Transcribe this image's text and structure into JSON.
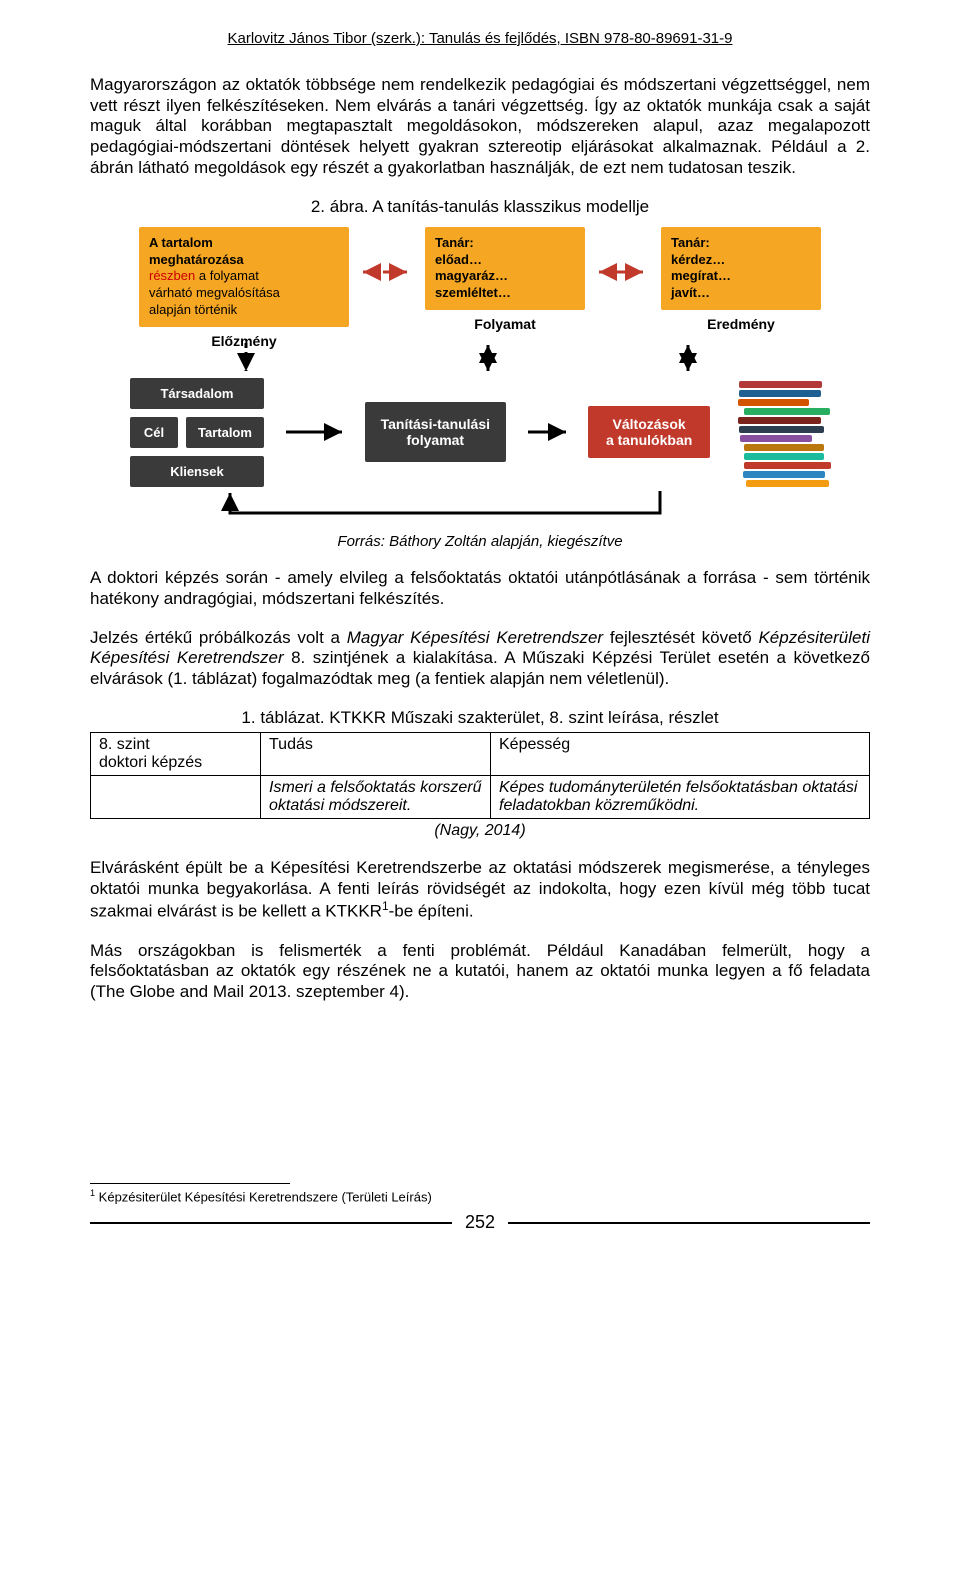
{
  "header": "Karlovitz János Tibor (szerk.): Tanulás és fejlődés, ISBN 978-80-89691-31-9",
  "para1": "Magyarországon az oktatók többsége nem rendelkezik pedagógiai és módszertani végzettséggel, nem vett részt ilyen felkészítéseken. Nem elvárás a tanári végzettség. Így az oktatók munkája csak a saját maguk által korábban megtapasztalt megoldásokon, módszereken alapul, azaz megalapozott pedagógiai-módszertani döntések helyett gyakran sztereotip eljárásokat alkalmaznak. Például a 2. ábrán látható megoldások egy részét a gyakorlatban használják, de ezt nem tudatosan teszik.",
  "fig_caption": "2. ábra. A tanítás-tanulás klasszikus modellje",
  "diagram": {
    "box1": {
      "line1": "A tartalom",
      "line2": "meghatározása",
      "line3_red": "részben",
      "line3_rest": " a folyamat",
      "line4": "várható megvalósítása",
      "line5": "alapján történik"
    },
    "box2": {
      "title": "Tanár:",
      "items": "előad…\nmagyaráz…\nszemléltet…"
    },
    "box3": {
      "title": "Tanár:",
      "items": "kérdez…\nmegírat…\njavít…"
    },
    "stage1": "Előzmény",
    "stage2": "Folyamat",
    "stage3": "Eredmény",
    "left": {
      "a": "Társadalom",
      "b": "Cél",
      "c": "Tartalom",
      "d": "Kliensek"
    },
    "process": "Tanítási-tanulási\nfolyamat",
    "result": "Változások\na tanulókban",
    "colors": {
      "yellow": "#f5a623",
      "dark": "#3a3a3a",
      "red_box": "#c0392b",
      "arrow_red": "#c0392b",
      "arrow_black": "#000000"
    },
    "book_colors": [
      "#b33939",
      "#1e6091",
      "#d35400",
      "#27ae60",
      "#7b241c",
      "#2c3e50",
      "#884ea0",
      "#b9770e",
      "#1abc9c",
      "#c0392b",
      "#2e86c1",
      "#f39c12"
    ]
  },
  "fig_source": "Forrás: Báthory Zoltán alapján, kiegészítve",
  "para2": "A doktori képzés során  - amely elvileg a felsőoktatás oktatói utánpótlásának a forrása - sem történik hatékony andragógiai, módszertani felkészítés.",
  "para3_a": "Jelzés értékű próbálkozás volt a ",
  "para3_em1": "Magyar Képesítési Keretrendszer",
  "para3_b": " fejlesztését követő ",
  "para3_em2": "Képzésiterületi Képesítési Keretrendszer",
  "para3_c": " 8. szintjének a kialakítása. A Műszaki Képzési Terület esetén a következő elvárások (1. táblázat) fogalmazódtak meg (a fentiek alapján nem véletlenül).",
  "table_caption": "1. táblázat. KTKKR Műszaki szakterület, 8. szint leírása, részlet",
  "table": {
    "r1c1a": "8. szint",
    "r1c1b": "doktori képzés",
    "r1c2": "Tudás",
    "r1c3": "Képesség",
    "r2c2": "Ismeri a felsőoktatás korszerű oktatási módszereit.",
    "r2c3": "Képes tudományterületén felsőoktatásban oktatási feladatokban közreműködni."
  },
  "table_source": "(Nagy, 2014)",
  "para4_a": "Elvárásként épült be a Képesítési Keretrendszerbe az oktatási módszerek megismerése, a tényleges oktatói munka begyakorlása. A fenti leírás rövidségét az indokolta, hogy ezen kívül még több tucat szakmai elvárást is be kellett a KTKKR",
  "para4_sup": "1",
  "para4_b": "-be építeni.",
  "para5": "Más országokban is felismerték a fenti problémát. Például Kanadában felmerült, hogy a felsőoktatásban az oktatók egy részének ne a kutatói, hanem az oktatói munka legyen a fő feladata (The Globe and Mail 2013. szeptember 4).",
  "footnote_marker": "1",
  "footnote_text": " Képzésiterület Képesítési Keretrendszere (Területi Leírás)",
  "page_number": "252"
}
